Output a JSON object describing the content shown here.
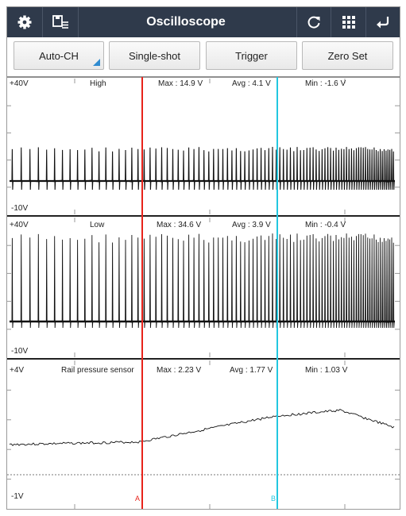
{
  "header": {
    "title": "Oscilloscope",
    "left_icons": [
      "gear-icon",
      "save-list-icon"
    ],
    "right_icons": [
      "refresh-icon",
      "grid-icon",
      "back-icon"
    ]
  },
  "toolbar": {
    "auto_ch_label": "Auto-CH",
    "single_shot_label": "Single-shot",
    "trigger_label": "Trigger",
    "zero_set_label": "Zero Set"
  },
  "channels": [
    {
      "name": "High",
      "scale_top": "+40V",
      "scale_bottom": "-10V",
      "max": "Max : 14.9 V",
      "avg": "Avg : 4.1 V",
      "min": "Min : -1.6 V"
    },
    {
      "name": "Low",
      "scale_top": "+40V",
      "scale_bottom": "-10V",
      "max": "Max : 34.6 V",
      "avg": "Avg : 3.9 V",
      "min": "Min : -0.4 V"
    },
    {
      "name": "Rail pressure sensor",
      "scale_top": "+4V",
      "scale_bottom": "-1V",
      "max": "Max : 2.23 V",
      "avg": "Avg : 1.77 V",
      "min": "Min : 1.03 V"
    }
  ],
  "cursors": {
    "a_label": "A",
    "b_label": "B",
    "a_color": "#e8231b",
    "b_color": "#22c7e0"
  },
  "colors": {
    "titlebar": "#2f3a4b",
    "trace": "#111111",
    "accent": "#2f8bd0"
  }
}
